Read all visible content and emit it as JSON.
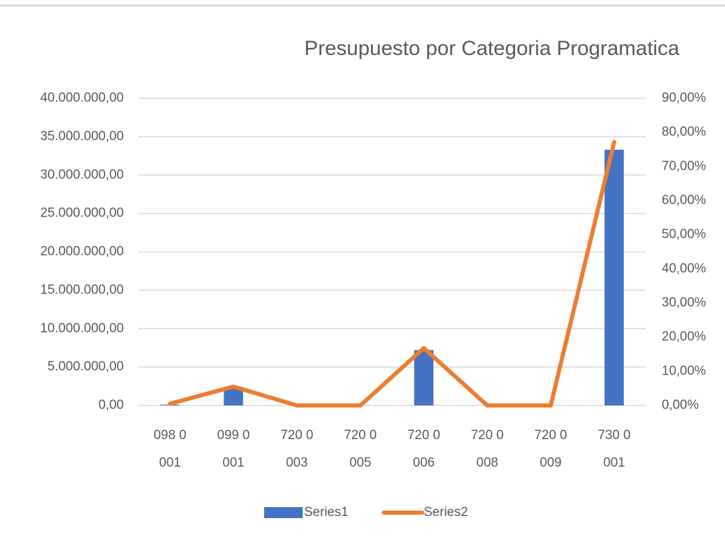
{
  "chart_data": {
    "type": "bar_line",
    "title": "Presupuesto por Categoria Programatica",
    "categories": [
      "098 0 001",
      "099 0 001",
      "720 0 003",
      "720 0 005",
      "720 0 006",
      "720 0 008",
      "720 0 009",
      "730 0 001"
    ],
    "series": [
      {
        "name": "Series1",
        "type": "bar",
        "color": "#4472c4",
        "values": [
          100000,
          2400000,
          0,
          0,
          7200000,
          0,
          0,
          33300000
        ]
      },
      {
        "name": "Series2",
        "type": "line",
        "color": "#ed7d31",
        "axis": "y2",
        "values": [
          0.5,
          5.5,
          0,
          0,
          16.8,
          0,
          0,
          77.2
        ]
      }
    ],
    "ylim": [
      0,
      40000000
    ],
    "yticks": [
      {
        "value": 0,
        "label": "0,00"
      },
      {
        "value": 5000000,
        "label": "5.000.000,00"
      },
      {
        "value": 10000000,
        "label": "10.000.000,00"
      },
      {
        "value": 15000000,
        "label": "15.000.000,00"
      },
      {
        "value": 20000000,
        "label": "20.000.000,00"
      },
      {
        "value": 25000000,
        "label": "25.000.000,00"
      },
      {
        "value": 30000000,
        "label": "30.000.000,00"
      },
      {
        "value": 35000000,
        "label": "35.000.000,00"
      },
      {
        "value": 40000000,
        "label": "40.000.000,00"
      }
    ],
    "y2lim": [
      0,
      90
    ],
    "y2ticks": [
      {
        "value": 0,
        "label": "0,00%"
      },
      {
        "value": 10,
        "label": "10,00%"
      },
      {
        "value": 20,
        "label": "20,00%"
      },
      {
        "value": 30,
        "label": "30,00%"
      },
      {
        "value": 40,
        "label": "40,00%"
      },
      {
        "value": 50,
        "label": "50,00%"
      },
      {
        "value": 60,
        "label": "60,00%"
      },
      {
        "value": 70,
        "label": "70,00%"
      },
      {
        "value": 80,
        "label": "80,00%"
      },
      {
        "value": 90,
        "label": "90,00%"
      }
    ],
    "grid": true,
    "legend": "bottom"
  }
}
